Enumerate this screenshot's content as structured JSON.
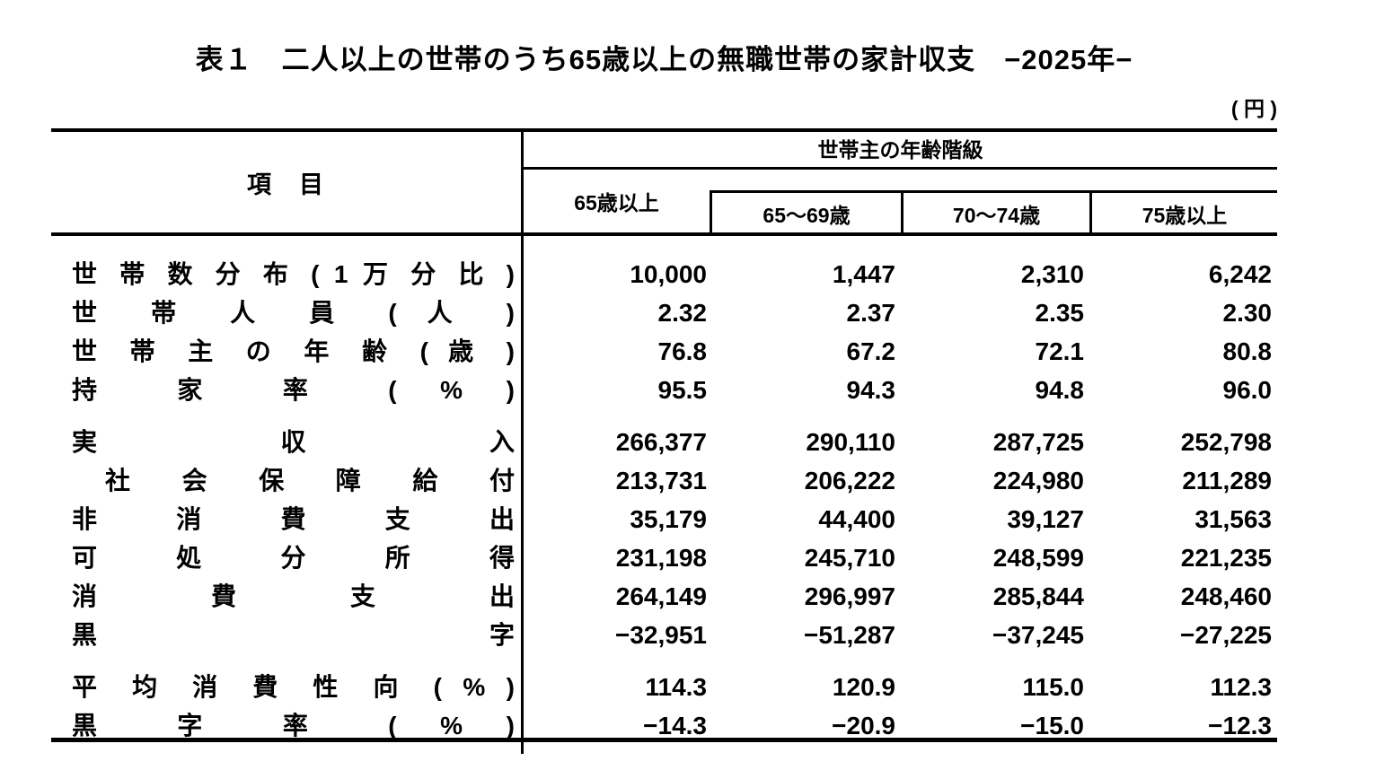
{
  "title": "表１　二人以上の世帯のうち65歳以上の無職世帯の家計収支　−2025年−",
  "unit_label": "( 円 )",
  "table": {
    "item_header": "項　目",
    "group_header": "世帯主の年齢階級",
    "columns": [
      "65歳以上",
      "65～69歳",
      "70～74歳",
      "75歳以上"
    ],
    "rows": [
      {
        "label": "世 帯 数 分 布 ( 1 万 分 比 )",
        "values": [
          "10,000",
          "1,447",
          "2,310",
          "6,242"
        ]
      },
      {
        "label": "世 帯 人 員 ( 人 )",
        "values": [
          "2.32",
          "2.37",
          "2.35",
          "2.30"
        ]
      },
      {
        "label": "世 帯 主 の 年 齢 ( 歳 )",
        "values": [
          "76.8",
          "67.2",
          "72.1",
          "80.8"
        ]
      },
      {
        "label": "持 家 率 ( % )",
        "values": [
          "95.5",
          "94.3",
          "94.8",
          "96.0"
        ]
      },
      {
        "label": "実 収 入",
        "values": [
          "266,377",
          "290,110",
          "287,725",
          "252,798"
        ]
      },
      {
        "label": "社 会 保 障 給 付",
        "values": [
          "213,731",
          "206,222",
          "224,980",
          "211,289"
        ]
      },
      {
        "label": "非 消 費 支 出",
        "values": [
          "35,179",
          "44,400",
          "39,127",
          "31,563"
        ]
      },
      {
        "label": "可 処 分 所 得",
        "values": [
          "231,198",
          "245,710",
          "248,599",
          "221,235"
        ]
      },
      {
        "label": "消 費 支 出",
        "values": [
          "264,149",
          "296,997",
          "285,844",
          "248,460"
        ]
      },
      {
        "label": "黒 字",
        "values": [
          "−32,951",
          "−51,287",
          "−37,245",
          "−27,225"
        ]
      },
      {
        "label": "平 均 消 費 性 向 ( % )",
        "values": [
          "114.3",
          "120.9",
          "115.0",
          "112.3"
        ]
      },
      {
        "label": "黒 字 率 ( % )",
        "values": [
          "−14.3",
          "−20.9",
          "−15.0",
          "−12.3"
        ]
      }
    ]
  }
}
